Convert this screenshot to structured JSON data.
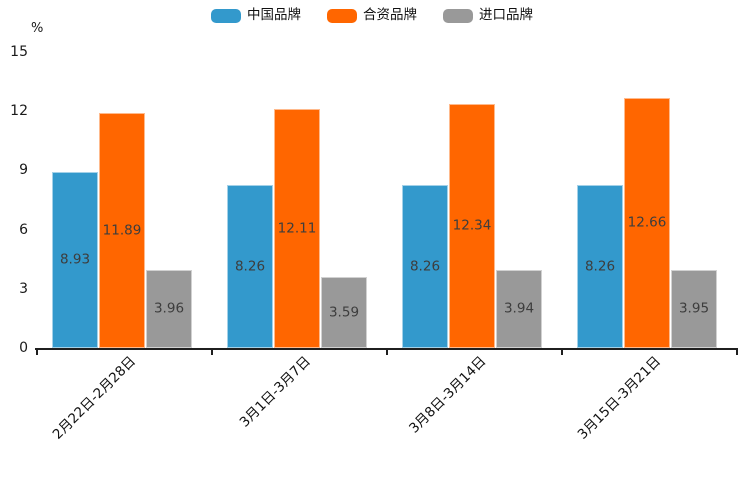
{
  "chart_data": {
    "type": "bar",
    "title": "",
    "unit_label": "%",
    "categories": [
      "2月22日-2月28日",
      "3月1日-3月7日",
      "3月8日-3月14日",
      "3月15日-3月21日"
    ],
    "series": [
      {
        "name": "中国品牌",
        "color": "#3399CC",
        "values": [
          8.93,
          8.26,
          8.26,
          8.26
        ]
      },
      {
        "name": "合资品牌",
        "color": "#FF6600",
        "values": [
          11.89,
          12.11,
          12.34,
          12.66
        ]
      },
      {
        "name": "进口品牌",
        "color": "#999999",
        "values": [
          3.96,
          3.59,
          3.94,
          3.95
        ]
      }
    ],
    "ylim": [
      0,
      15
    ],
    "yticks": [
      0,
      3,
      6,
      9,
      12,
      15
    ],
    "grid": false,
    "legend_position": "top-center",
    "value_labels": "inside-center",
    "axis_color": "#1F1F1F",
    "value_label_color": "#3D3D3D"
  }
}
